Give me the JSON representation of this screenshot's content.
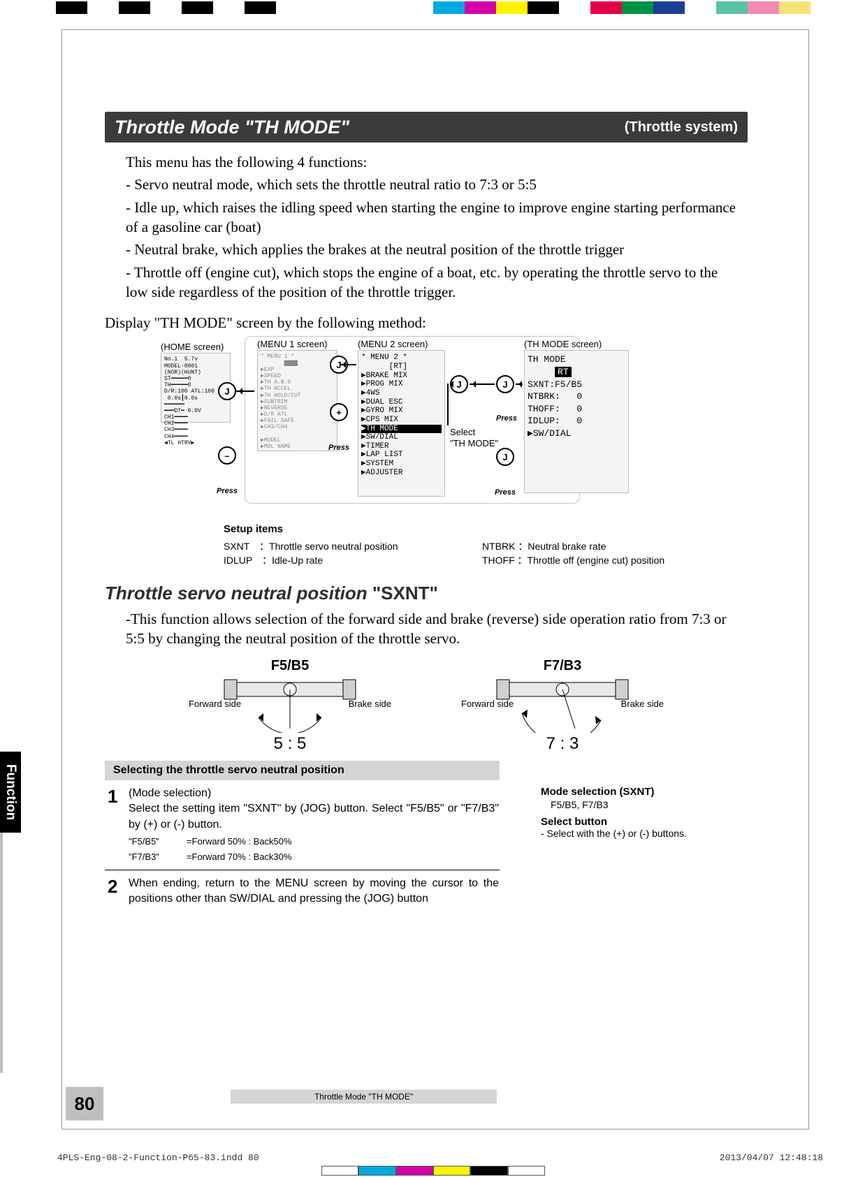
{
  "calibration": {
    "top_colors": [
      "#000000",
      "#ffffff",
      "#000000",
      "#ffffff",
      "#000000",
      "#ffffff",
      "#000000",
      "#ffffff",
      "#ffffff",
      "#ffffff",
      "#ffffff",
      "#ffffff",
      "#00a9e0",
      "#d400a6",
      "#fff200",
      "#000000",
      "#ffffff",
      "#e40046",
      "#009245",
      "#1b3f94",
      "#ffffff",
      "#5bc2a7",
      "#f08ab1",
      "#f7e27a"
    ],
    "bottom_colors": [
      "#ffffff",
      "#00a9e0",
      "#d400a6",
      "#fff200",
      "#000000",
      "#ffffff"
    ]
  },
  "title_bar": {
    "main": "Throttle Mode \"TH MODE\"",
    "sub": "(Throttle system)"
  },
  "intro": {
    "lead": "This menu has the following 4 functions:",
    "l1": "- Servo neutral mode, which sets the throttle neutral ratio to 7:3 or 5:5",
    "l2": "- Idle up, which raises the idling speed when starting the engine to improve engine starting performance of a gasoline car (boat)",
    "l3": "- Neutral brake, which applies the brakes at the neutral position of the throttle trigger",
    "l4": "- Throttle off (engine cut), which stops the engine of a boat, etc. by operating the throttle servo to the low side regardless of the position of the throttle trigger."
  },
  "display_line": "Display \"TH MODE\" screen by the following method:",
  "screens": {
    "home_label": "(HOME screen)",
    "menu1_label": "(MENU 1 screen)",
    "menu2_label": "(MENU 2 screen)",
    "thmode_label": "(TH MODE screen)",
    "select_label1": "Select",
    "select_label2": "\"TH MODE\"",
    "menu2_text": "* MENU 2 *\n      [RT]\n▶BRAKE MIX\n▶PROG MIX\n▶4WS\n▶DUAL ESC\n▶GYRO MIX\n▶CPS MIX\n▶TH MODE\n\n▶SW/DIAL\n▶TIMER\n▶LAP LIST\n▶SYSTEM\n▶ADJUSTER",
    "thmode_text": "TH MODE\n     [RT]\nSXNT:F5/B5\n\nNTBRK:   0\n\nTHOFF:   0\n\nIDLUP:   0\n\n\n▶SW/DIAL",
    "press": "Press",
    "jog": "J",
    "plus": "+",
    "minus": "–"
  },
  "setup": {
    "header": "Setup items",
    "c1a": "SXNT　：Throttle servo neutral position",
    "c1b": "IDLUP　：Idle-Up rate",
    "c2a": "NTBRK ：Neutral brake rate",
    "c2b": "THOFF ：Throttle off (engine cut) position"
  },
  "sxnt": {
    "heading_a": "Throttle servo neutral position ",
    "heading_b": "\"",
    "heading_c": "SXNT",
    "heading_d": "\"",
    "body": "-This function allows selection of the forward side and brake (reverse) side operation ratio from 7:3 or 5:5 by changing the neutral position of the throttle servo."
  },
  "servo": {
    "left_mode": "F5/B5",
    "right_mode": "F7/B3",
    "fwd": "Forward side",
    "brk": "Brake side",
    "left_ratio": "5 : 5",
    "right_ratio": "7 : 3"
  },
  "graybar": "Selecting the throttle servo neutral position",
  "step1": {
    "num": "1",
    "title": "(Mode selection)",
    "body": "Select the setting item \"SXNT\" by (JOG) button. Select \"F5/B5\" or \"F7/B3\" by (+) or (-) button.",
    "note1": "\"F5/B5\"　　　=Forward 50% : Back50%",
    "note2": "\"F7/B3\"　　　=Forward 70% : Back30%"
  },
  "step2": {
    "num": "2",
    "body": "When ending, return to the MENU screen by moving the cursor to the positions other than SW/DIAL and pressing the (JOG) button"
  },
  "side_panel": {
    "h1": "Mode selection (SXNT)",
    "v1": "　F5/B5, F7/B3",
    "h2": "Select button",
    "v2": "- Select with the (+) or (-) buttons."
  },
  "side_tab": "Function",
  "page_num": "80",
  "footer_text": "Throttle Mode \"TH MODE\"",
  "imprint_left": "4PLS-Eng-08-2-Function-P65-83.indd   80",
  "imprint_right": "2013/04/07   12:48:18"
}
